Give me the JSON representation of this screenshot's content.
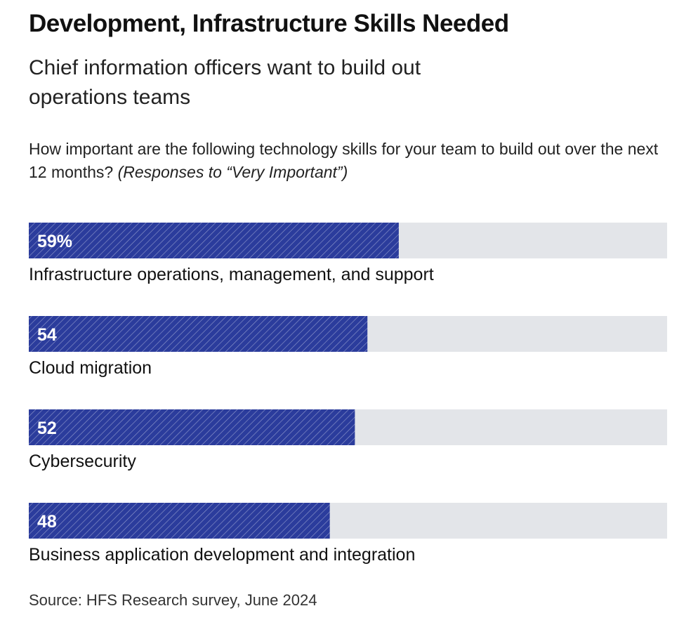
{
  "title": "Development, Infrastructure Skills Needed",
  "subtitle": "Chief information officers want to build out operations teams",
  "question": {
    "text": "How important are the following technology skills for your team to build out over the next 12 months?",
    "emphasis": "(Responses to “Very Important”)"
  },
  "source": "Source:  HFS Research survey, June 2024",
  "colors": {
    "bar": "#2b3c9c",
    "track": "#e3e5e9",
    "label": "#111111",
    "value": "#ffffff"
  },
  "chart_data": {
    "type": "bar",
    "orientation": "horizontal",
    "categories": [
      "Infrastructure operations, management, and support",
      "Cloud migration",
      "Cybersecurity",
      "Business application development and integration"
    ],
    "values": [
      59,
      54,
      52,
      48
    ],
    "value_labels": [
      "59%",
      "54",
      "52",
      "48"
    ],
    "xlim": [
      0,
      100
    ],
    "unit": "%"
  }
}
